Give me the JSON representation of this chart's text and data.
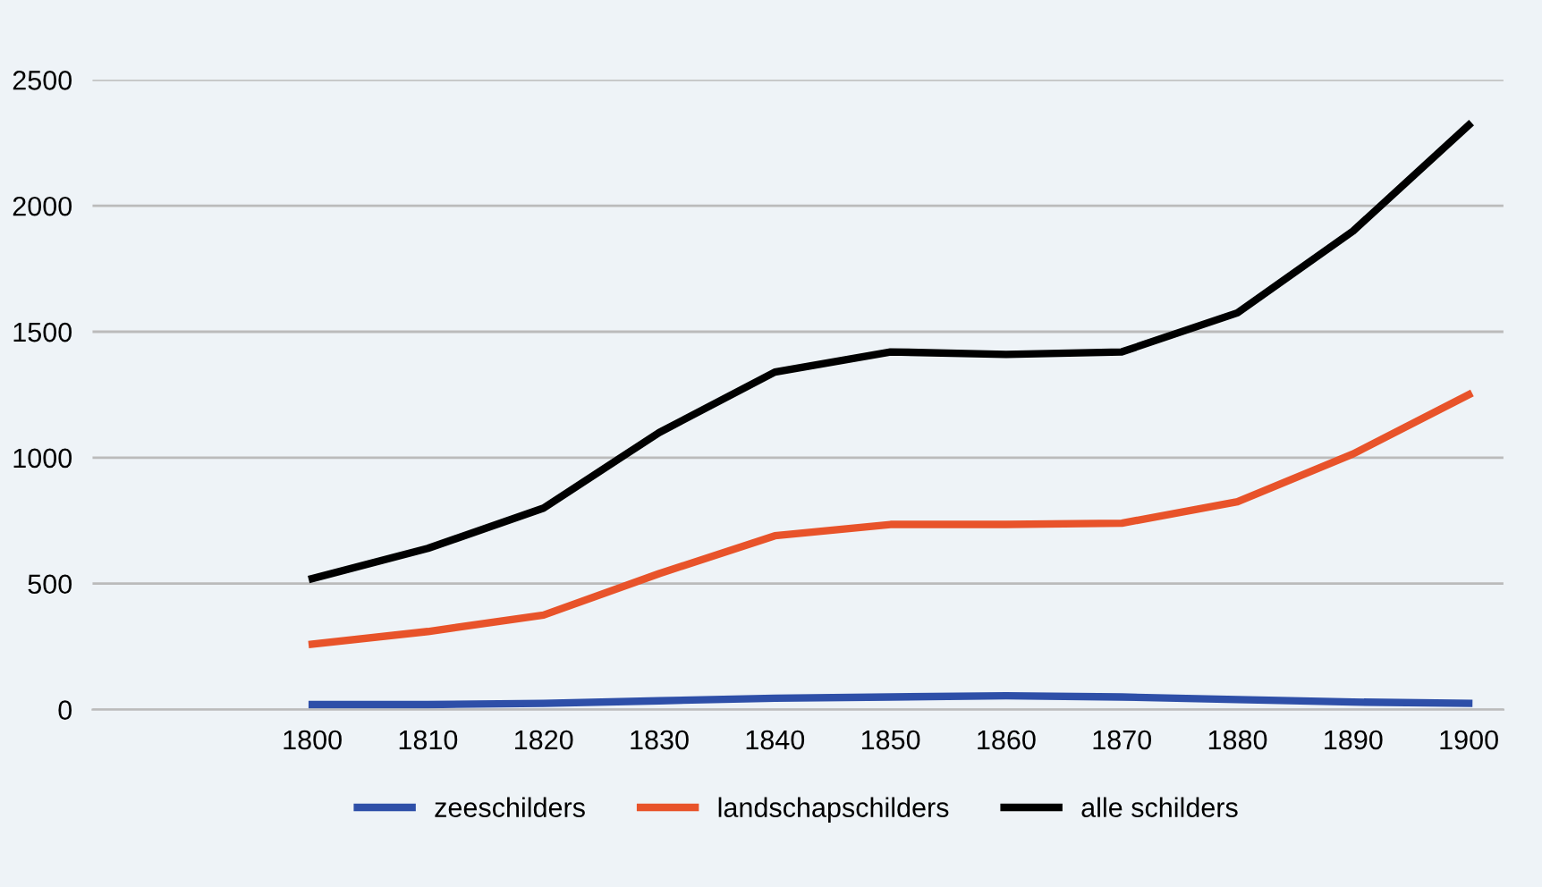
{
  "chart_data": {
    "type": "line",
    "x": [
      1800,
      1810,
      1820,
      1830,
      1840,
      1850,
      1860,
      1870,
      1880,
      1890,
      1900
    ],
    "series": [
      {
        "name": "zeeschilders",
        "color": "#2e4fa8",
        "values": [
          20,
          20,
          25,
          35,
          45,
          50,
          55,
          50,
          40,
          30,
          25
        ]
      },
      {
        "name": "landschapschilders",
        "color": "#e8532a",
        "values": [
          260,
          310,
          375,
          540,
          690,
          735,
          735,
          740,
          825,
          1015,
          1250
        ]
      },
      {
        "name": "alle schilders",
        "color": "#000000",
        "values": [
          520,
          640,
          800,
          1100,
          1340,
          1420,
          1410,
          1420,
          1575,
          1900,
          2320
        ]
      }
    ],
    "xlim": [
      1781,
      1903
    ],
    "xticks": [
      1800,
      1810,
      1820,
      1830,
      1840,
      1850,
      1860,
      1870,
      1880,
      1890,
      1900
    ],
    "ylim": [
      0,
      2500
    ],
    "yticks": [
      0,
      500,
      1000,
      1500,
      2000,
      2500
    ],
    "grid": "y",
    "legend": "bottom",
    "marker": "none",
    "line_style": "solid"
  }
}
